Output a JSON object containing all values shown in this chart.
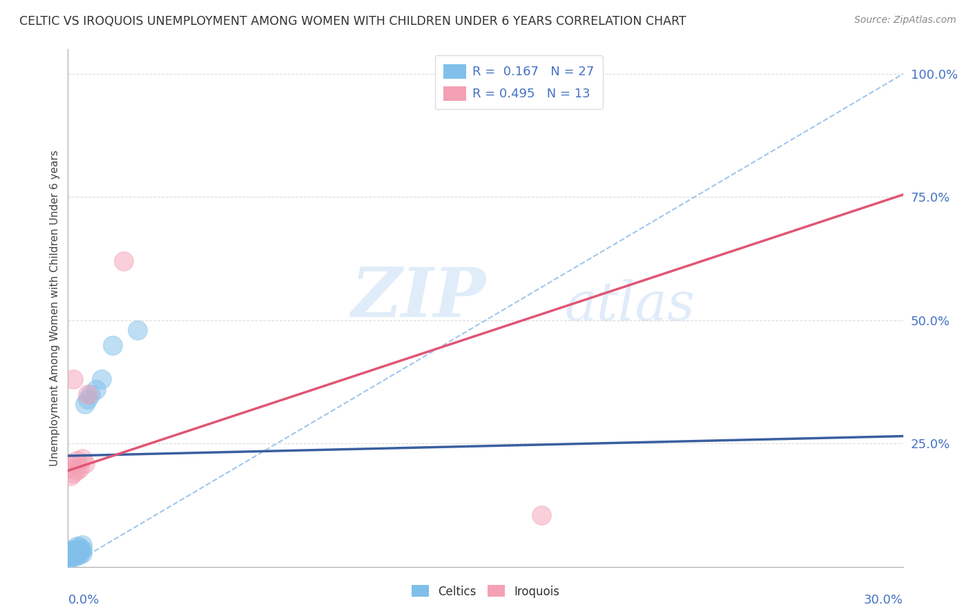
{
  "title": "CELTIC VS IROQUOIS UNEMPLOYMENT AMONG WOMEN WITH CHILDREN UNDER 6 YEARS CORRELATION CHART",
  "source": "Source: ZipAtlas.com",
  "ylabel": "Unemployment Among Women with Children Under 6 years",
  "celtics_color": "#7fbfea",
  "iroquois_color": "#f4a0b5",
  "celtics_trendline_color": "#3a5fa0",
  "iroquois_trendline_color": "#e05575",
  "diag_line_color": "#90bce8",
  "grid_color": "#cccccc",
  "background_color": "#ffffff",
  "xmin": 0.0,
  "xmax": 0.3,
  "ymin": 0.0,
  "ymax": 1.05,
  "ytick_positions": [
    0.25,
    0.5,
    0.75,
    1.0
  ],
  "ytick_labels": [
    "25.0%",
    "50.0%",
    "75.0%",
    "100.0%"
  ],
  "celtics_x": [
    0.0,
    0.0,
    0.0,
    0.001,
    0.001,
    0.001,
    0.001,
    0.002,
    0.002,
    0.002,
    0.003,
    0.003,
    0.003,
    0.003,
    0.004,
    0.004,
    0.004,
    0.005,
    0.005,
    0.005,
    0.006,
    0.007,
    0.008,
    0.01,
    0.012,
    0.016,
    0.025
  ],
  "celtics_y": [
    0.02,
    0.025,
    0.03,
    0.018,
    0.022,
    0.028,
    0.035,
    0.02,
    0.025,
    0.032,
    0.022,
    0.028,
    0.035,
    0.042,
    0.025,
    0.032,
    0.04,
    0.028,
    0.035,
    0.045,
    0.33,
    0.34,
    0.35,
    0.36,
    0.38,
    0.45,
    0.48
  ],
  "iroquois_x": [
    0.0,
    0.001,
    0.001,
    0.002,
    0.002,
    0.003,
    0.003,
    0.004,
    0.005,
    0.006,
    0.007,
    0.02,
    0.17
  ],
  "iroquois_y": [
    0.2,
    0.185,
    0.21,
    0.19,
    0.38,
    0.195,
    0.215,
    0.2,
    0.22,
    0.21,
    0.35,
    0.62,
    0.105
  ],
  "celtics_trend_x0": 0.0,
  "celtics_trend_y0": 0.225,
  "celtics_trend_x1": 0.3,
  "celtics_trend_y1": 0.265,
  "iroquois_trend_x0": 0.0,
  "iroquois_trend_y0": 0.195,
  "iroquois_trend_x1": 0.3,
  "iroquois_trend_y1": 0.755,
  "legend_r1": "R =  0.167",
  "legend_n1": "N = 27",
  "legend_r2": "R = 0.495",
  "legend_n2": "N = 13"
}
